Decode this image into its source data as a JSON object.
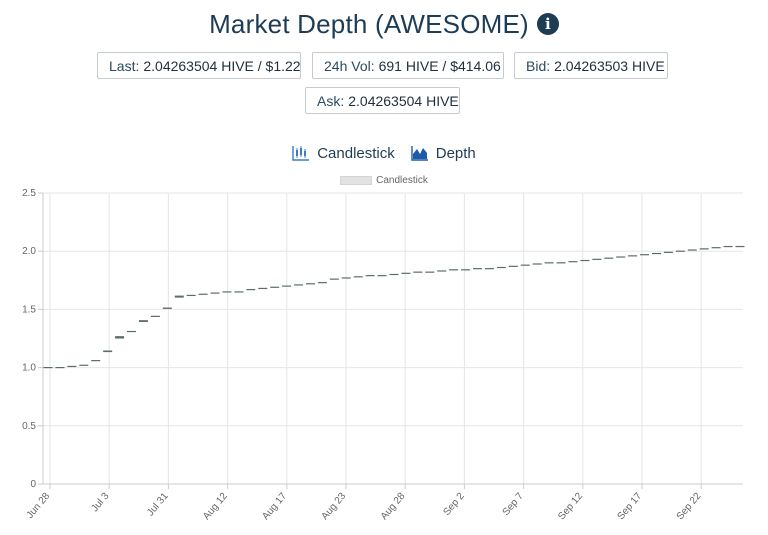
{
  "header": {
    "title": "Market Depth (AWESOME)",
    "info_icon": "info-circle-icon"
  },
  "stats": {
    "last": {
      "label": "Last:",
      "value": "2.04263504 HIVE / $1.22"
    },
    "vol": {
      "label": "24h Vol:",
      "value": "691 HIVE / $414.06"
    },
    "bid": {
      "label": "Bid:",
      "value": "2.04263503 HIVE"
    },
    "ask": {
      "label": "Ask:",
      "value": "2.04263504 HIVE"
    }
  },
  "tabs": [
    {
      "label": "Candlestick",
      "icon": "candlestick-chart-icon"
    },
    {
      "label": "Depth",
      "icon": "area-chart-icon"
    }
  ],
  "colors": {
    "heading": "#1f3c55",
    "candle": "#5b6e66",
    "grid": "#e6e6e6"
  },
  "chart_data": {
    "type": "candlestick",
    "legend": [
      "Candlestick"
    ],
    "legend_position": "top",
    "grid": true,
    "ylim": [
      0,
      2.5
    ],
    "yticks": [
      "0",
      "0.5",
      "1.0",
      "1.5",
      "2.0",
      "2.5"
    ],
    "xticks": [
      "Jun 28",
      "Jul 3",
      "Jul 31",
      "Aug 12",
      "Aug 17",
      "Aug 23",
      "Aug 28",
      "Sep 2",
      "Sep 7",
      "Sep 12",
      "Sep 17",
      "Sep 22"
    ],
    "values": [
      1.0,
      1.0,
      1.01,
      1.02,
      1.06,
      1.14,
      1.26,
      1.31,
      1.4,
      1.44,
      1.51,
      1.61,
      1.62,
      1.63,
      1.64,
      1.65,
      1.65,
      1.67,
      1.68,
      1.69,
      1.7,
      1.71,
      1.72,
      1.73,
      1.76,
      1.77,
      1.78,
      1.79,
      1.79,
      1.8,
      1.81,
      1.82,
      1.82,
      1.83,
      1.84,
      1.84,
      1.85,
      1.85,
      1.86,
      1.87,
      1.88,
      1.89,
      1.9,
      1.9,
      1.91,
      1.92,
      1.93,
      1.94,
      1.95,
      1.96,
      1.97,
      1.98,
      1.99,
      2.0,
      2.01,
      2.02,
      2.03,
      2.04,
      2.04
    ]
  }
}
